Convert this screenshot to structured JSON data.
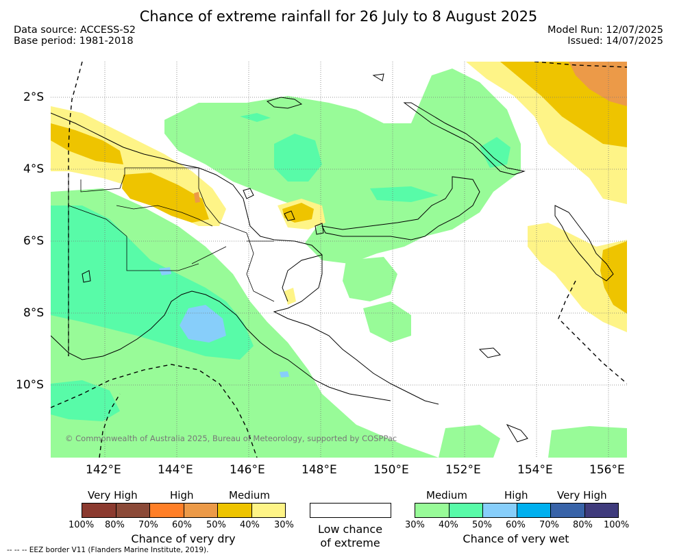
{
  "title": "Chance of extreme rainfall for 26 July to 8 August 2025",
  "data_source": "Data source: ACCESS-S2",
  "base_period": "Base period: 1981-2018",
  "model_run": "Model Run: 12/07/2025",
  "issued": "Issued: 14/07/2025",
  "lat_ticks": [
    "2°S",
    "4°S",
    "6°S",
    "8°S",
    "10°S"
  ],
  "lon_ticks": [
    "142°E",
    "144°E",
    "146°E",
    "148°E",
    "150°E",
    "152°E",
    "154°E",
    "156°E"
  ],
  "credit": "© Commonwealth of Australia 2025, Bureau of Meteorology, supported by COSPPac",
  "legend": {
    "dry": {
      "headers": [
        "Very High",
        "High",
        "Medium"
      ],
      "colors": [
        "#8b3a2f",
        "#8b4a38",
        "#ff7f27",
        "#ec9a48",
        "#eec400",
        "#fef487"
      ],
      "ticks": [
        "100%",
        "80%",
        "70%",
        "60%",
        "50%",
        "40%",
        "30%"
      ],
      "caption": "Chance of very dry"
    },
    "low": {
      "color": "#ffffff",
      "caption_line1": "Low chance",
      "caption_line2": "of extreme"
    },
    "wet": {
      "headers": [
        "Medium",
        "High",
        "Very High"
      ],
      "colors": [
        "#98fb98",
        "#58fba8",
        "#87cefa",
        "#00b0ef",
        "#3863a8",
        "#3f3b7c"
      ],
      "ticks": [
        "30%",
        "40%",
        "50%",
        "60%",
        "70%",
        "80%",
        "100%"
      ],
      "caption": "Chance of very wet"
    }
  },
  "footnote": "-- -- -- EEZ border V11 (Flanders Marine Institute, 2019)."
}
